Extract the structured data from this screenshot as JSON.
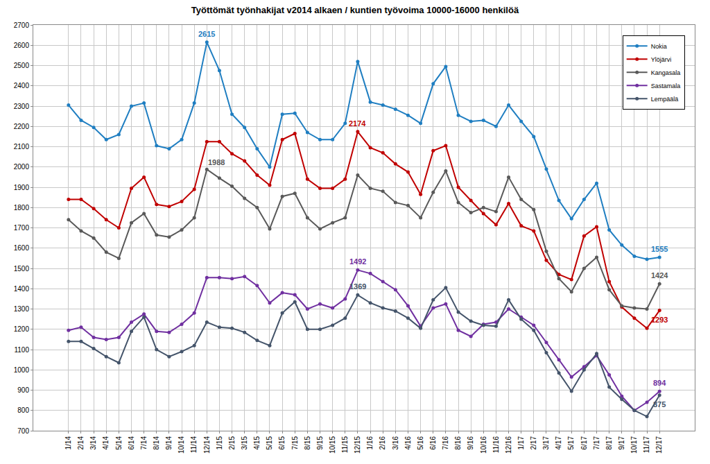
{
  "chart_data": {
    "type": "line",
    "title": "Työttömät työnhakijat v2014 alkaen / kuntien työvoima 10000-16000 henkilöä",
    "categories": [
      "1/14",
      "2/14",
      "3/14",
      "4/14",
      "5/14",
      "6/14",
      "7/14",
      "8/14",
      "9/14",
      "10/14",
      "11/14",
      "12/14",
      "1/15",
      "2/15",
      "3/15",
      "4/15",
      "5/15",
      "6/15",
      "7/15",
      "8/15",
      "9/15",
      "10/15",
      "11/15",
      "12/15",
      "1/16",
      "2/16",
      "3/16",
      "4/16",
      "5/16",
      "6/16",
      "7/16",
      "8/16",
      "9/16",
      "10/16",
      "11/16",
      "12/16",
      "1/17",
      "2/17",
      "3/17",
      "4/17",
      "5/17",
      "6/17",
      "7/17",
      "8/17",
      "9/17",
      "10/17",
      "11/17",
      "12/17"
    ],
    "series": [
      {
        "name": "Nokia",
        "color": "#1F7EC1",
        "values": [
          2305,
          2230,
          2195,
          2135,
          2160,
          2300,
          2315,
          2105,
          2090,
          2135,
          2315,
          2615,
          2475,
          2260,
          2195,
          2090,
          2000,
          2260,
          2265,
          2170,
          2135,
          2135,
          2215,
          2520,
          2320,
          2305,
          2285,
          2255,
          2215,
          2410,
          2495,
          2255,
          2225,
          2230,
          2200,
          2305,
          2225,
          2150,
          1990,
          1835,
          1745,
          1840,
          1920,
          1690,
          1615,
          1560,
          1545,
          1555
        ]
      },
      {
        "name": "Ylöjärvi",
        "color": "#C00000",
        "values": [
          1840,
          1840,
          1795,
          1740,
          1700,
          1895,
          1950,
          1815,
          1805,
          1830,
          1890,
          2125,
          2125,
          2065,
          2030,
          1960,
          1910,
          2135,
          2165,
          1940,
          1895,
          1895,
          1940,
          2174,
          2095,
          2070,
          2015,
          1975,
          1865,
          2080,
          2105,
          1900,
          1835,
          1770,
          1715,
          1820,
          1710,
          1685,
          1540,
          1470,
          1445,
          1660,
          1705,
          1435,
          1310,
          1255,
          1205,
          1293
        ]
      },
      {
        "name": "Kangasala",
        "color": "#595959",
        "values": [
          1740,
          1685,
          1650,
          1580,
          1550,
          1725,
          1770,
          1665,
          1655,
          1690,
          1750,
          1988,
          1945,
          1905,
          1845,
          1800,
          1695,
          1855,
          1870,
          1750,
          1695,
          1725,
          1750,
          1960,
          1895,
          1880,
          1825,
          1810,
          1750,
          1875,
          1980,
          1825,
          1775,
          1800,
          1780,
          1950,
          1840,
          1790,
          1585,
          1450,
          1385,
          1500,
          1555,
          1395,
          1315,
          1305,
          1300,
          1424
        ]
      },
      {
        "name": "Sastamala",
        "color": "#7030A0",
        "values": [
          1195,
          1210,
          1160,
          1150,
          1160,
          1235,
          1275,
          1190,
          1185,
          1225,
          1280,
          1455,
          1455,
          1450,
          1460,
          1415,
          1330,
          1380,
          1370,
          1300,
          1325,
          1305,
          1350,
          1492,
          1475,
          1435,
          1395,
          1315,
          1215,
          1305,
          1325,
          1195,
          1165,
          1225,
          1235,
          1300,
          1260,
          1220,
          1135,
          1050,
          965,
          1015,
          1070,
          975,
          870,
          800,
          840,
          894
        ]
      },
      {
        "name": "Lempäälä",
        "color": "#44546A",
        "values": [
          1140,
          1140,
          1105,
          1065,
          1035,
          1190,
          1260,
          1100,
          1065,
          1090,
          1120,
          1235,
          1210,
          1205,
          1185,
          1145,
          1120,
          1280,
          1335,
          1200,
          1200,
          1220,
          1255,
          1369,
          1330,
          1305,
          1290,
          1255,
          1205,
          1345,
          1405,
          1285,
          1240,
          1220,
          1215,
          1345,
          1250,
          1195,
          1085,
          985,
          895,
          1000,
          1080,
          915,
          855,
          800,
          770,
          875
        ]
      }
    ],
    "annotations": [
      {
        "text": "2615",
        "series": "Nokia",
        "category": "12/14"
      },
      {
        "text": "1988",
        "series": "Kangasala",
        "category": "12/14"
      },
      {
        "text": "2174",
        "series": "Ylöjärvi",
        "category": "12/15"
      },
      {
        "text": "1492",
        "series": "Sastamala",
        "category": "12/15"
      },
      {
        "text": "1369",
        "series": "Lempäälä",
        "category": "12/15"
      },
      {
        "text": "1555",
        "series": "Nokia",
        "category": "12/17"
      },
      {
        "text": "1424",
        "series": "Kangasala",
        "category": "12/17"
      },
      {
        "text": "1293",
        "series": "Ylöjärvi",
        "category": "12/17"
      },
      {
        "text": "894",
        "series": "Sastamala",
        "category": "12/17"
      },
      {
        "text": "875",
        "series": "Lempäälä",
        "category": "12/17"
      }
    ],
    "ylim": [
      700,
      2700
    ],
    "yticks": [
      700,
      800,
      900,
      1000,
      1100,
      1200,
      1300,
      1400,
      1500,
      1600,
      1700,
      1800,
      1900,
      2000,
      2100,
      2200,
      2300,
      2400,
      2500,
      2600,
      2700
    ],
    "grid": true,
    "legend": "top-right",
    "marker": "circle"
  }
}
